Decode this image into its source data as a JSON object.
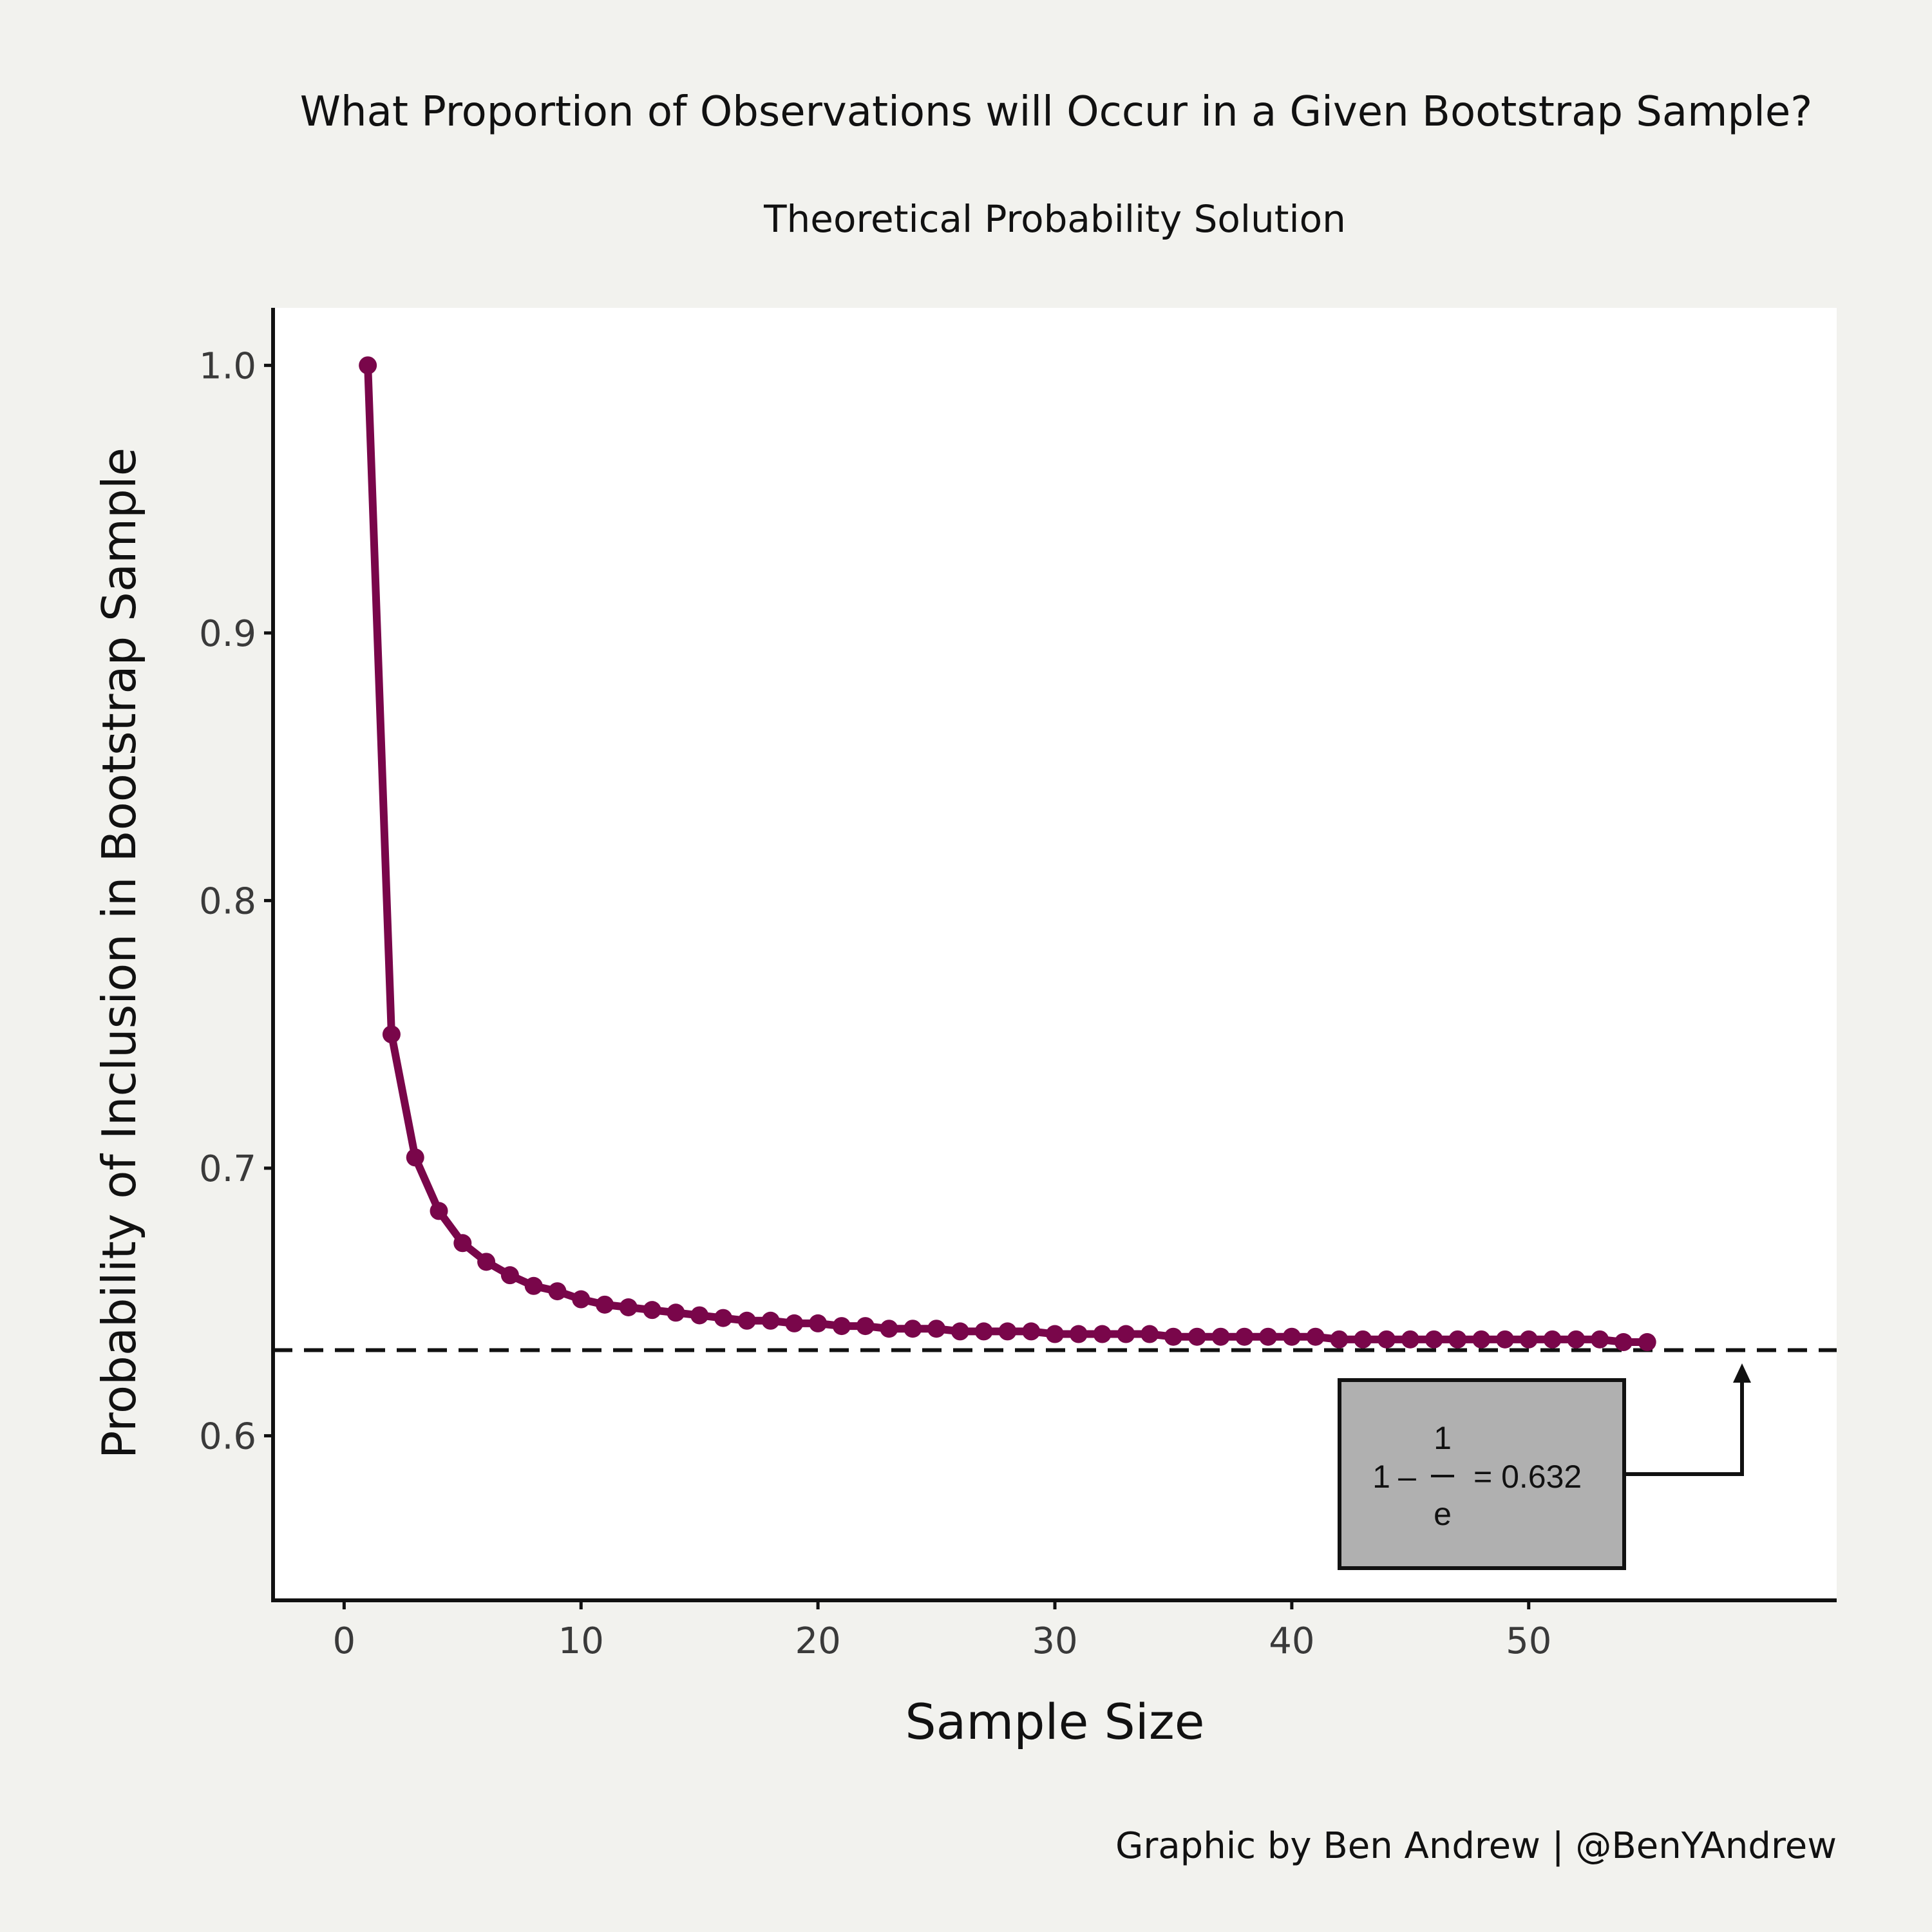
{
  "chart_data": {
    "type": "line",
    "title": "What Proportion of Observations will Occur in a Given Bootstrap Sample?",
    "subtitle": "Theoretical Probability Solution",
    "xlabel": "Sample Size",
    "ylabel": "Probability of Inclusion in Bootstrap Sample",
    "caption": "Graphic by Ben Andrew | @BenYAndrew",
    "xlim": [
      -3,
      63
    ],
    "ylim": [
      0.5385,
      1.0215
    ],
    "x_ticks": [
      0,
      10,
      20,
      30,
      40,
      50
    ],
    "x_tick_labels": [
      "0",
      "10",
      "20",
      "30",
      "40",
      "50"
    ],
    "y_ticks": [
      0.6,
      0.7,
      0.8,
      0.9,
      1.0
    ],
    "y_tick_labels": [
      "0.6",
      "0.7",
      "0.8",
      "0.9",
      "1.0"
    ],
    "grid": false,
    "series": [
      {
        "color": "#79064a",
        "x": [
          1,
          2,
          3,
          4,
          5,
          6,
          7,
          8,
          9,
          10,
          11,
          12,
          13,
          14,
          15,
          16,
          17,
          18,
          19,
          20,
          21,
          22,
          23,
          24,
          25,
          26,
          27,
          28,
          29,
          30,
          31,
          32,
          33,
          34,
          35,
          36,
          37,
          38,
          39,
          40,
          41,
          42,
          43,
          44,
          45,
          46,
          47,
          48,
          49,
          50,
          51,
          52,
          53,
          54,
          55
        ],
        "y": [
          1.0,
          0.75,
          0.704,
          0.684,
          0.672,
          0.665,
          0.66,
          0.656,
          0.654,
          0.651,
          0.649,
          0.648,
          0.647,
          0.646,
          0.645,
          0.644,
          0.643,
          0.643,
          0.642,
          0.642,
          0.641,
          0.641,
          0.64,
          0.64,
          0.64,
          0.639,
          0.639,
          0.639,
          0.639,
          0.638,
          0.638,
          0.638,
          0.638,
          0.638,
          0.637,
          0.637,
          0.637,
          0.637,
          0.637,
          0.637,
          0.637,
          0.636,
          0.636,
          0.636,
          0.636,
          0.636,
          0.636,
          0.636,
          0.636,
          0.636,
          0.636,
          0.636,
          0.636,
          0.635,
          0.635
        ]
      }
    ],
    "reference_line": {
      "y": 0.632,
      "style": "dashed",
      "color": "#111111"
    },
    "annotation": {
      "lead": "1",
      "minus": "–",
      "numerator": "1",
      "denominator": "e",
      "result": "= 0.632",
      "box_color": "#b0b0b0"
    }
  }
}
